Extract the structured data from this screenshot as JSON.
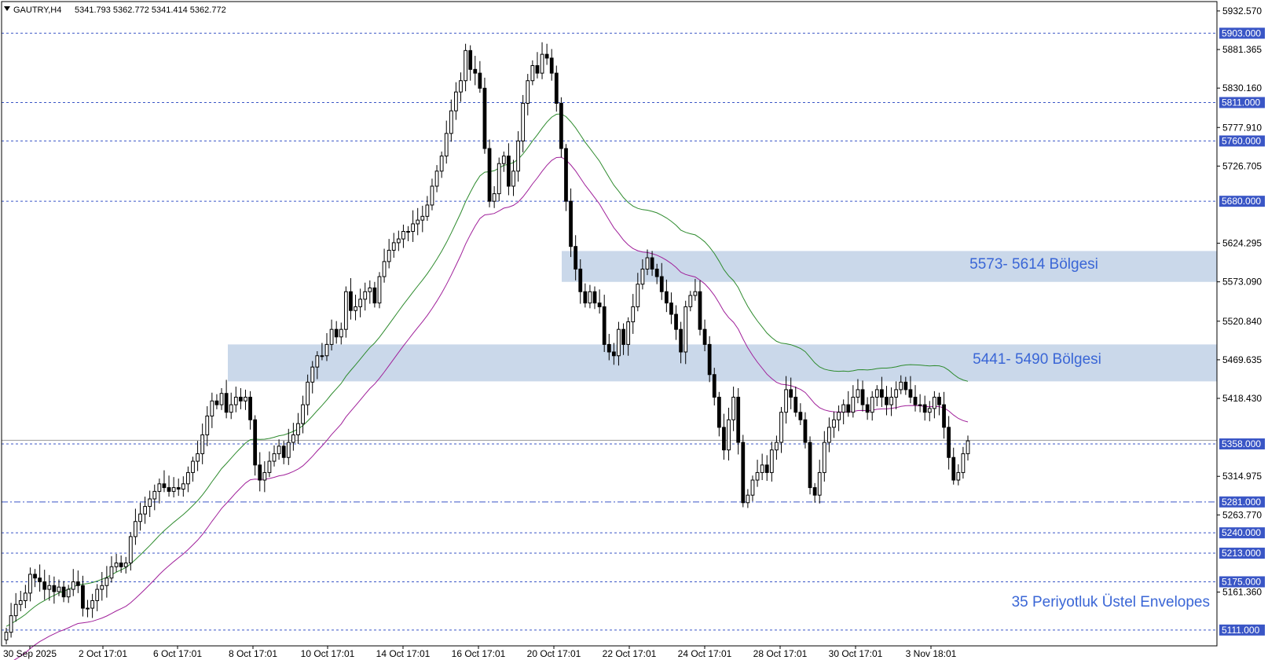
{
  "header": {
    "symbol": "GAUTRY,H4",
    "ohlc": "5341.793 5362.772 5341.414 5362.772"
  },
  "chart_data": {
    "type": "candlestick",
    "symbol": "GAUTRY",
    "timeframe": "H4",
    "ylim": [
      5090,
      5945
    ],
    "y_ticks": [
      "5932.570",
      "5881.365",
      "5830.160",
      "5777.910",
      "5726.705",
      "5624.295",
      "5573.090",
      "5520.840",
      "5469.635",
      "5418.430",
      "5314.975",
      "5263.770",
      "5161.360"
    ],
    "x_ticks": [
      "30 Sep 2025",
      "2 Oct 17:01",
      "6 Oct 17:01",
      "8 Oct 17:01",
      "10 Oct 17:01",
      "14 Oct 17:01",
      "16 Oct 17:01",
      "20 Oct 17:01",
      "22 Oct 17:01",
      "24 Oct 17:01",
      "28 Oct 17:01",
      "30 Oct 17:01",
      "3 Nov 18:01"
    ],
    "levels": [
      {
        "value": 5903,
        "label": "5903.000",
        "style": "dashed"
      },
      {
        "value": 5811,
        "label": "5811.000",
        "style": "dashed"
      },
      {
        "value": 5760,
        "label": "5760.000",
        "style": "dashed"
      },
      {
        "value": 5680,
        "label": "5680.000",
        "style": "dashed"
      },
      {
        "value": 5358,
        "label": "5358.000",
        "style": "dashed"
      },
      {
        "value": 5281,
        "label": "5281.000",
        "style": "dashdot"
      },
      {
        "value": 5240,
        "label": "5240.000",
        "style": "dashed"
      },
      {
        "value": 5213,
        "label": "5213.000",
        "style": "dashed"
      },
      {
        "value": 5175,
        "label": "5175.000",
        "style": "dashed"
      },
      {
        "value": 5111,
        "label": "5111.000",
        "style": "dashed"
      }
    ],
    "current_price": 5362.772,
    "zones": [
      {
        "label": "5573- 5614 Bölgesi",
        "low": 5573,
        "high": 5614
      },
      {
        "label": "5441- 5490 Bölgesi",
        "low": 5441,
        "high": 5490
      }
    ],
    "annotation": "35 Periyotluk Üstel Envelopes",
    "candle_values": [
      5108,
      5130,
      5145,
      5150,
      5160,
      5185,
      5180,
      5175,
      5165,
      5170,
      5162,
      5168,
      5155,
      5165,
      5175,
      5170,
      5140,
      5140,
      5150,
      5165,
      5170,
      5180,
      5195,
      5200,
      5195,
      5200,
      5235,
      5255,
      5265,
      5275,
      5285,
      5295,
      5305,
      5300,
      5295,
      5300,
      5298,
      5305,
      5320,
      5335,
      5345,
      5370,
      5395,
      5415,
      5410,
      5425,
      5400,
      5410,
      5420,
      5415,
      5420,
      5390,
      5330,
      5310,
      5320,
      5335,
      5345,
      5355,
      5340,
      5360,
      5370,
      5385,
      5410,
      5440,
      5460,
      5475,
      5475,
      5490,
      5510,
      5500,
      5510,
      5560,
      5535,
      5540,
      5550,
      5560,
      5565,
      5545,
      5580,
      5600,
      5615,
      5625,
      5630,
      5640,
      5640,
      5650,
      5655,
      5660,
      5675,
      5700,
      5720,
      5740,
      5770,
      5800,
      5825,
      5840,
      5880,
      5855,
      5850,
      5830,
      5750,
      5680,
      5690,
      5730,
      5740,
      5700,
      5720,
      5760,
      5810,
      5840,
      5860,
      5850,
      5875,
      5870,
      5850,
      5810,
      5750,
      5680,
      5620,
      5590,
      5560,
      5545,
      5560,
      5545,
      5540,
      5490,
      5480,
      5475,
      5510,
      5490,
      5520,
      5540,
      5570,
      5590,
      5605,
      5590,
      5580,
      5560,
      5545,
      5530,
      5510,
      5480,
      5540,
      5555,
      5560,
      5510,
      5490,
      5450,
      5420,
      5380,
      5350,
      5390,
      5420,
      5360,
      5280,
      5290,
      5310,
      5320,
      5330,
      5320,
      5350,
      5360,
      5400,
      5430,
      5420,
      5400,
      5390,
      5360,
      5300,
      5290,
      5320,
      5360,
      5380,
      5390,
      5400,
      5410,
      5400,
      5420,
      5430,
      5410,
      5400,
      5420,
      5430,
      5420,
      5410,
      5420,
      5430,
      5440,
      5430,
      5420,
      5410,
      5410,
      5400,
      5405,
      5420,
      5410,
      5380,
      5340,
      5310,
      5320,
      5345,
      5362
    ]
  }
}
